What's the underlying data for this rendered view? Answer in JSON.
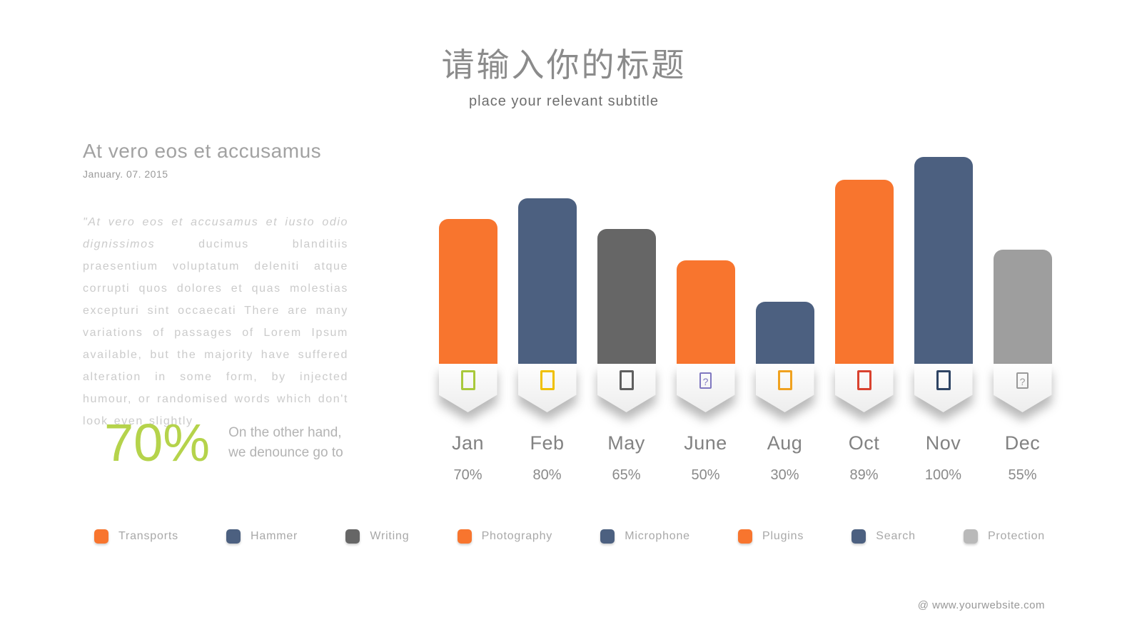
{
  "header": {
    "title": "请输入你的标题",
    "subtitle": "place your relevant subtitle"
  },
  "left_panel": {
    "heading": "At vero eos et accusamus",
    "date": "January. 07. 2015",
    "quote_italic": "\"At vero eos et accusamus et iusto odio dignissimos",
    "quote_rest": " ducimus blanditiis praesentium voluptatum deleniti atque corrupti quos dolores et quas molestias excepturi sint occaecati There are many variations of passages of Lorem Ipsum available, but the majority have suffered alteration in some form, by injected humour, or randomised words which don't look even slightly",
    "stat_value": "70%",
    "stat_color": "#b5d34b",
    "stat_caption_line1": "On the other hand,",
    "stat_caption_line2": "we denounce go to"
  },
  "chart_data": {
    "type": "bar",
    "title": "",
    "xlabel": "",
    "ylabel": "",
    "categories": [
      "Jan",
      "Feb",
      "May",
      "June",
      "Aug",
      "Oct",
      "Nov",
      "Dec"
    ],
    "values": [
      70,
      80,
      65,
      50,
      30,
      89,
      100,
      55
    ],
    "value_labels": [
      "70%",
      "80%",
      "65%",
      "50%",
      "30%",
      "89%",
      "100%",
      "55%"
    ],
    "bar_colors": [
      "#f8752e",
      "#4c6080",
      "#666666",
      "#f8752e",
      "#4c6080",
      "#f8752e",
      "#4c6080",
      "#9e9e9e"
    ],
    "icons": [
      {
        "name": "placeholder-glyph-icon",
        "color": "#a9c93c",
        "question": false
      },
      {
        "name": "placeholder-glyph-icon",
        "color": "#f0c000",
        "question": false
      },
      {
        "name": "placeholder-glyph-icon",
        "color": "#5f5f5f",
        "question": false
      },
      {
        "name": "placeholder-glyph-icon",
        "color": "#8078c0",
        "question": true
      },
      {
        "name": "placeholder-glyph-icon",
        "color": "#f0a220",
        "question": false
      },
      {
        "name": "placeholder-glyph-icon",
        "color": "#d9422f",
        "question": false
      },
      {
        "name": "placeholder-glyph-icon",
        "color": "#2e4464",
        "question": false
      },
      {
        "name": "placeholder-glyph-icon",
        "color": "#999999",
        "question": true
      }
    ],
    "ylim": [
      0,
      100
    ],
    "grid": false,
    "legend_position": "bottom",
    "legend": [
      {
        "label": "Transports",
        "color": "#f8752e"
      },
      {
        "label": "Hammer",
        "color": "#4c6080"
      },
      {
        "label": "Writing",
        "color": "#666666"
      },
      {
        "label": "Photography",
        "color": "#f8752e"
      },
      {
        "label": "Microphone",
        "color": "#4c6080"
      },
      {
        "label": "Plugins",
        "color": "#f8752e"
      },
      {
        "label": "Search",
        "color": "#4c6080"
      },
      {
        "label": "Protection",
        "color": "#b9b9b9"
      }
    ]
  },
  "footer": {
    "website": "@ www.yourwebsite.com"
  }
}
